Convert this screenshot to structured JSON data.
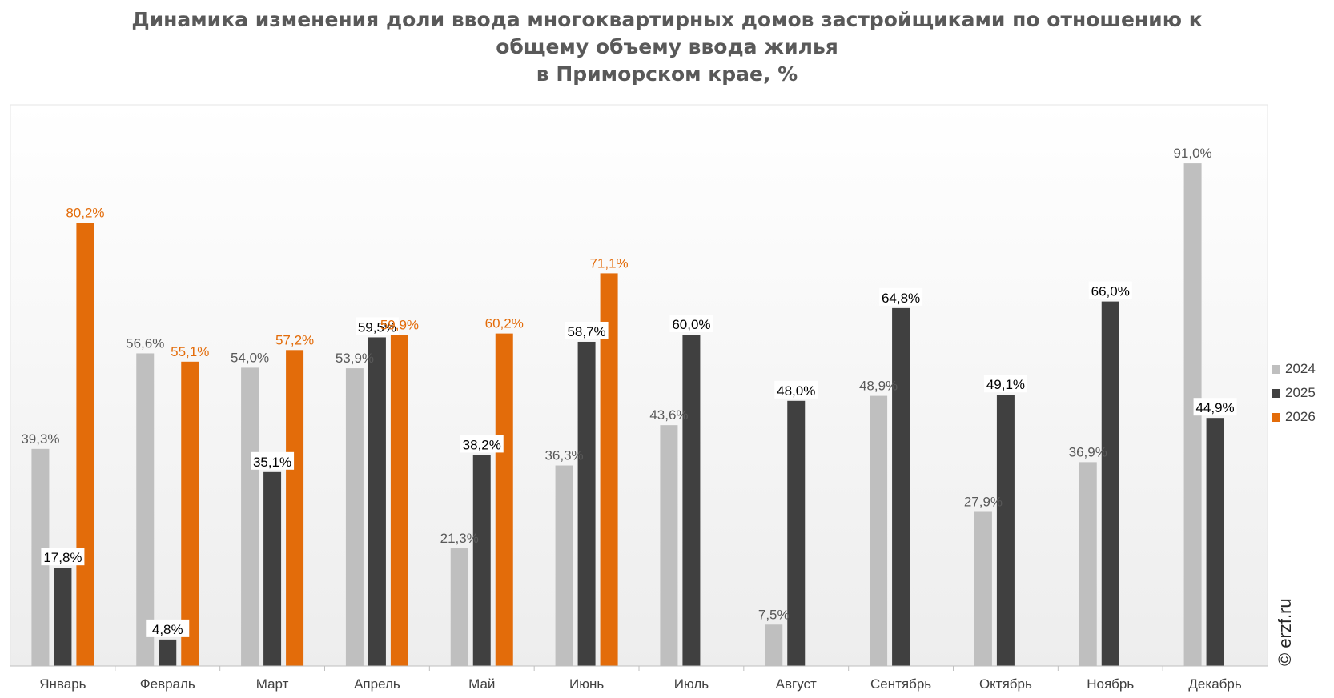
{
  "title_lines": [
    "Динамика изменения доли ввода многоквартирных домов застройщиками по отношению к",
    "общему объему ввода жилья",
    "в Приморском крае, %"
  ],
  "watermark": "© erzf.ru",
  "colors": {
    "2024": "#bfbfbf",
    "2025": "#404040",
    "2026": "#e36c0a"
  },
  "chart_data": {
    "type": "bar",
    "categories": [
      "Январь",
      "Февраль",
      "Март",
      "Апрель",
      "Май",
      "Июнь",
      "Июль",
      "Август",
      "Сентябрь",
      "Октябрь",
      "Ноябрь",
      "Декабрь"
    ],
    "series": [
      {
        "name": "2024",
        "values": [
          39.3,
          56.6,
          54.0,
          53.9,
          21.3,
          36.3,
          43.6,
          7.5,
          48.9,
          27.9,
          36.9,
          91.0
        ],
        "labels": [
          "39,3%",
          "56,6%",
          "54,0%",
          "53,9%",
          "21,3%",
          "36,3%",
          "43,6%",
          "7,5%",
          "48,9%",
          "27,9%",
          "36,9%",
          "91,0%"
        ]
      },
      {
        "name": "2025",
        "values": [
          17.8,
          4.8,
          35.1,
          59.5,
          38.2,
          58.7,
          60.0,
          48.0,
          64.8,
          49.1,
          66.0,
          44.9
        ],
        "labels": [
          "17,8%",
          "4,8%",
          "35,1%",
          "59,5%",
          "38,2%",
          "58,7%",
          "60,0%",
          "48,0%",
          "64,8%",
          "49,1%",
          "66,0%",
          "44,9%"
        ]
      },
      {
        "name": "2026",
        "values": [
          80.2,
          55.1,
          57.2,
          59.9,
          60.2,
          71.1,
          null,
          null,
          null,
          null,
          null,
          null
        ],
        "labels": [
          "80,2%",
          "55,1%",
          "57,2%",
          "59,9%",
          "60,2%",
          "71,1%",
          null,
          null,
          null,
          null,
          null,
          null
        ]
      }
    ],
    "ylim": [
      0,
      100
    ],
    "grid": false,
    "legend_position": "right"
  }
}
